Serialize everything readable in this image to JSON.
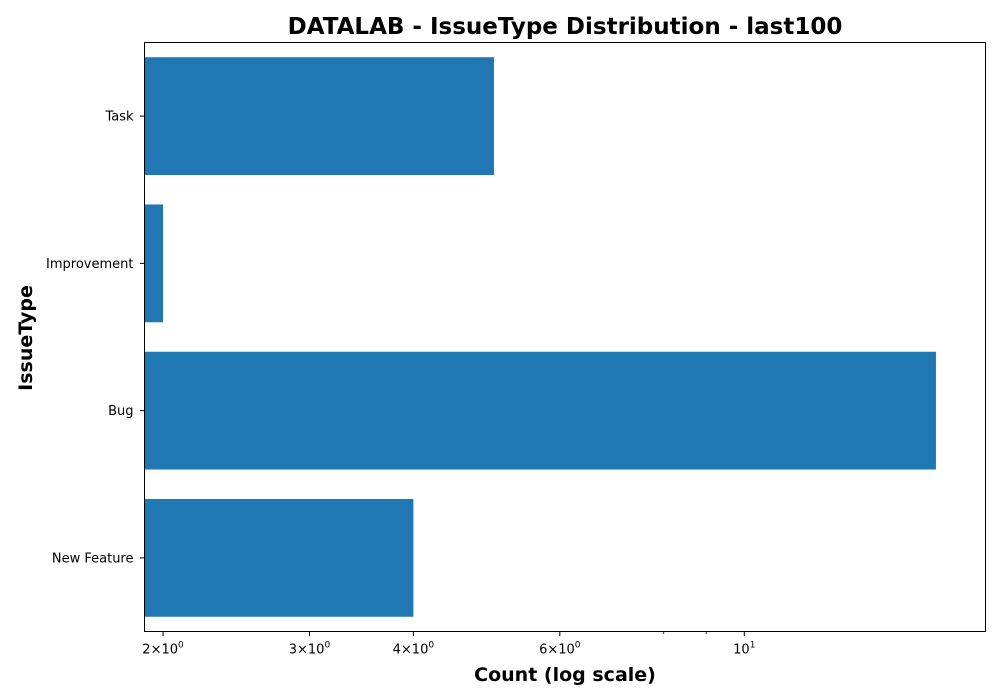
{
  "chart_data": {
    "type": "bar",
    "orientation": "horizontal",
    "title": "DATALAB - IssueType Distribution - last100",
    "xlabel": "Count (log scale)",
    "ylabel": "IssueType",
    "xscale": "log",
    "xlim": [
      1.9,
      19.5
    ],
    "categories": [
      "New Feature",
      "Bug",
      "Improvement",
      "Task"
    ],
    "values": [
      4,
      17,
      2,
      5
    ],
    "bar_color": "#1f77b4",
    "x_major_ticks": [
      {
        "value": 2,
        "base": "2",
        "exp": "0"
      },
      {
        "value": 3,
        "base": "3",
        "exp": "0"
      },
      {
        "value": 4,
        "base": "4",
        "exp": "0"
      },
      {
        "value": 6,
        "base": "6",
        "exp": "0"
      },
      {
        "value": 10,
        "base": "10",
        "exp": "1"
      }
    ],
    "x_minor_ticks": [
      8,
      9
    ],
    "grid": false,
    "legend": "none"
  }
}
